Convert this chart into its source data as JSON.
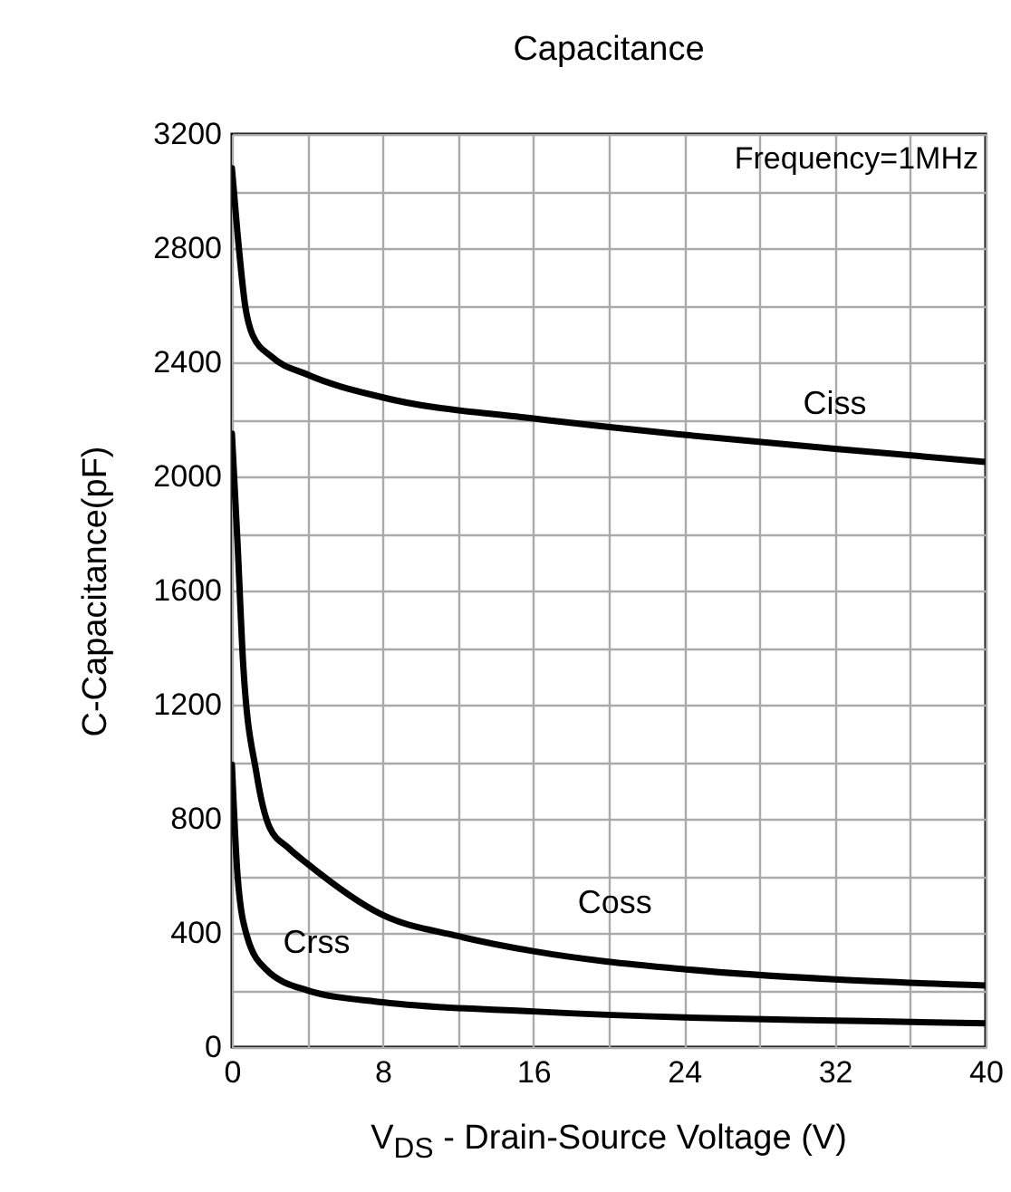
{
  "chart_data": {
    "type": "line",
    "title": "Capacitance",
    "xlabel": "V$_{DS}$ - Drain-Source Voltage (V)",
    "ylabel": "C-Capacitance(pF)",
    "annotations": [
      "Frequency=1MHz"
    ],
    "xlim": [
      0,
      40
    ],
    "xticks": [
      0,
      {
        "value": 4,
        "label": null
      },
      8,
      {
        "value": 12,
        "label": null
      },
      16,
      {
        "value": 20,
        "label": null
      },
      24,
      {
        "value": 28,
        "label": null
      },
      32,
      {
        "value": 36,
        "label": null
      },
      40
    ],
    "ylim": [
      0,
      3200
    ],
    "yticks": [
      0,
      {
        "value": 200,
        "label": null
      },
      400,
      {
        "value": 600,
        "label": null
      },
      800,
      {
        "value": 1000,
        "label": null
      },
      1200,
      {
        "value": 1400,
        "label": null
      },
      1600,
      {
        "value": 1800,
        "label": null
      },
      2000,
      {
        "value": 2200,
        "label": null
      },
      2400,
      {
        "value": 2600,
        "label": null
      },
      2800,
      {
        "value": 3000,
        "label": null
      },
      3200
    ],
    "grid": true,
    "legend": false,
    "marker": "none",
    "line_style": "solid",
    "series": [
      {
        "name": "Ciss",
        "color": "#000000",
        "x": [
          0,
          0.3,
          0.7,
          1.1,
          2.1,
          4,
          8,
          16,
          24,
          32,
          40
        ],
        "values": [
          3080,
          2850,
          2600,
          2495,
          2420,
          2357,
          2277,
          2203,
          2146,
          2097,
          2051
        ]
      },
      {
        "name": "Coss",
        "color": "#000000",
        "x": [
          0,
          0.3,
          0.6,
          1.3,
          2,
          3,
          4,
          8,
          12,
          16,
          24,
          32,
          40
        ],
        "values": [
          2150,
          1765,
          1340,
          961,
          770,
          698,
          643,
          463,
          389,
          336,
          273,
          237,
          216
        ]
      },
      {
        "name": "Crss",
        "color": "#000000",
        "x": [
          0,
          0.3,
          0.8,
          1.8,
          4,
          8,
          16,
          24,
          32,
          40
        ],
        "values": [
          990,
          601,
          389,
          273,
          199,
          157,
          125,
          104,
          93,
          83
        ]
      }
    ]
  }
}
